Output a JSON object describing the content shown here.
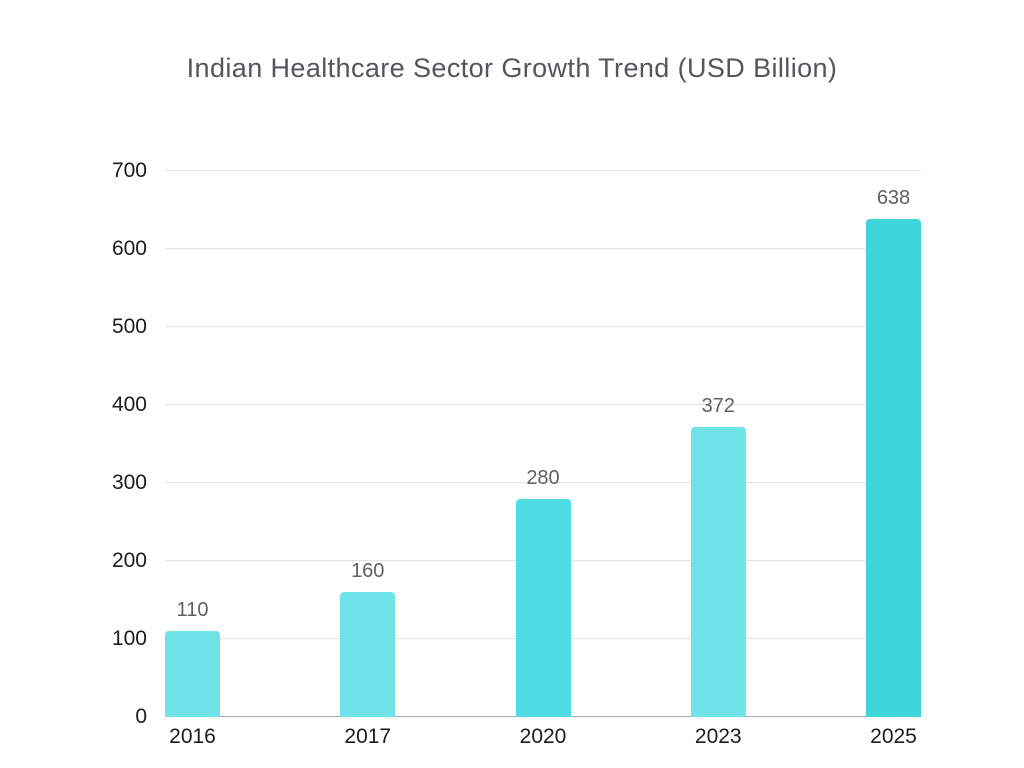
{
  "page": {
    "background_color": "#ffffff"
  },
  "chart_data": {
    "type": "bar",
    "title": "Indian Healthcare Sector Growth Trend (USD Billion)",
    "categories": [
      "2016",
      "2017",
      "2020",
      "2023",
      "2025"
    ],
    "values": [
      110,
      160,
      280,
      372,
      638
    ],
    "bar_colors": [
      "#6fe3ea",
      "#6fe3ea",
      "#4edde5",
      "#6fe3ea",
      "#3ed6da"
    ],
    "value_labels": [
      "110",
      "160",
      "280",
      "372",
      "638"
    ],
    "xlabel": "",
    "ylabel": "",
    "ylim": [
      0,
      700
    ],
    "yticks": [
      0,
      100,
      200,
      300,
      400,
      500,
      600,
      700
    ],
    "grid": "horizontal",
    "legend": "none",
    "colors": {
      "title": "#55565a",
      "value_label": "#5f6062",
      "axis_label": "#1c1c1c",
      "gridline": "#e3e3e3",
      "baseline": "#ababab"
    }
  }
}
